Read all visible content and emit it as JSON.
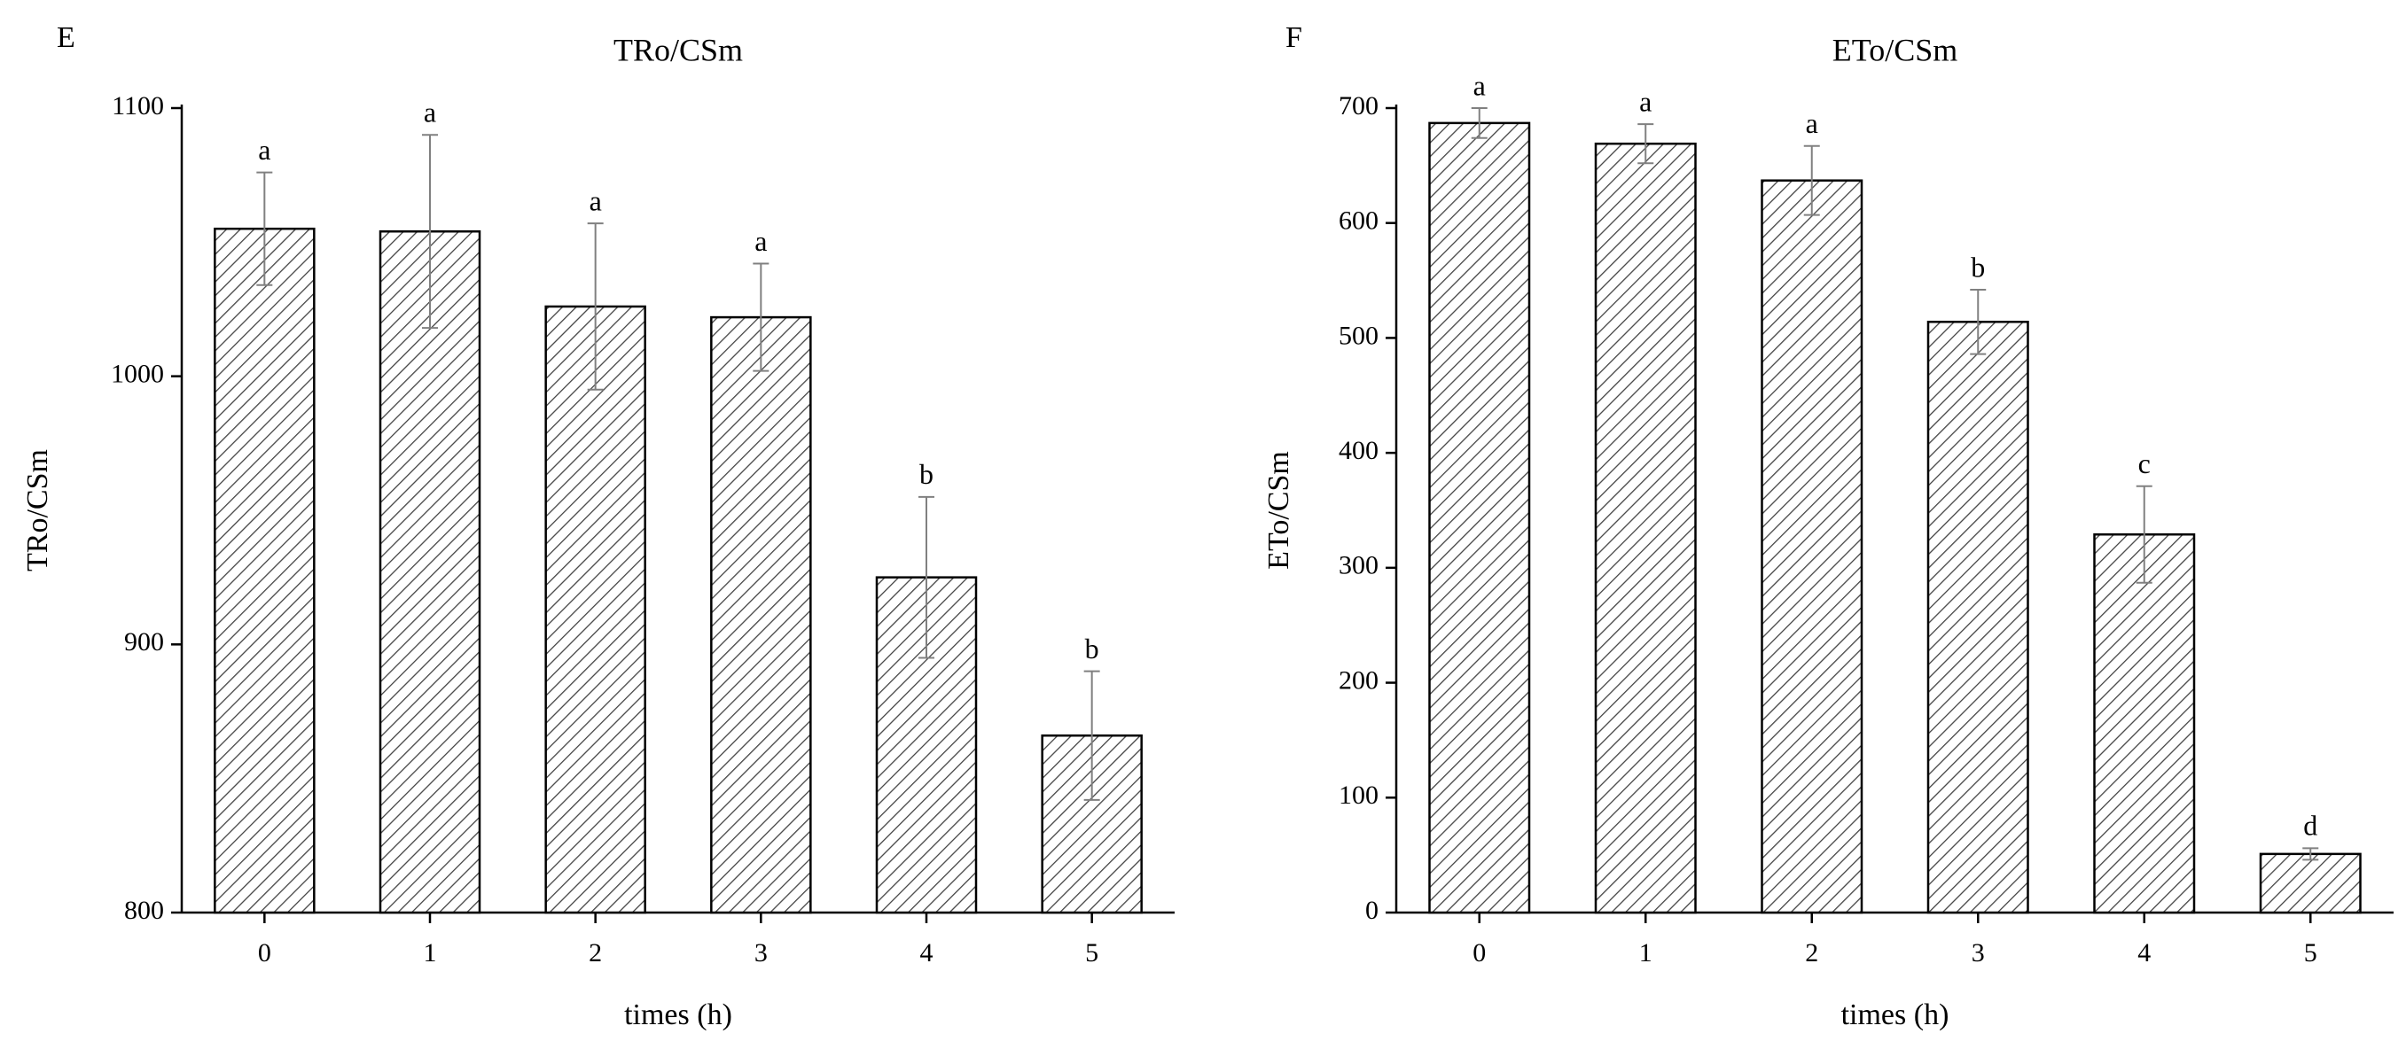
{
  "chart_data": [
    {
      "panel_label": "E",
      "type": "bar",
      "title": "TRo/CSm",
      "xlabel": "times (h)",
      "ylabel": "TRo/CSm",
      "categories": [
        "0",
        "1",
        "2",
        "3",
        "4",
        "5"
      ],
      "values": [
        1055,
        1054,
        1026,
        1022,
        925,
        866
      ],
      "errors": [
        21,
        36,
        31,
        20,
        30,
        24
      ],
      "significance": [
        "a",
        "a",
        "a",
        "a",
        "b",
        "b"
      ],
      "ylim": [
        800,
        1100
      ],
      "yticks": [
        800,
        900,
        1000,
        1100
      ],
      "bar_fill": "diagonal-hatch",
      "grid": false
    },
    {
      "panel_label": "F",
      "type": "bar",
      "title": "ETo/CSm",
      "xlabel": "times (h)",
      "ylabel": "ETo/CSm",
      "categories": [
        "0",
        "1",
        "2",
        "3",
        "4",
        "5"
      ],
      "values": [
        687,
        669,
        637,
        514,
        329,
        51
      ],
      "errors": [
        13,
        17,
        30,
        28,
        42,
        5
      ],
      "significance": [
        "a",
        "a",
        "a",
        "b",
        "c",
        "d"
      ],
      "ylim": [
        0,
        700
      ],
      "yticks": [
        0,
        100,
        200,
        300,
        400,
        500,
        600,
        700
      ],
      "bar_fill": "diagonal-hatch",
      "grid": false
    }
  ],
  "colors": {
    "bar_stroke": "#000000",
    "hatch": "#444444",
    "error_bar": "#808080",
    "axis": "#000000",
    "background": "#ffffff"
  }
}
